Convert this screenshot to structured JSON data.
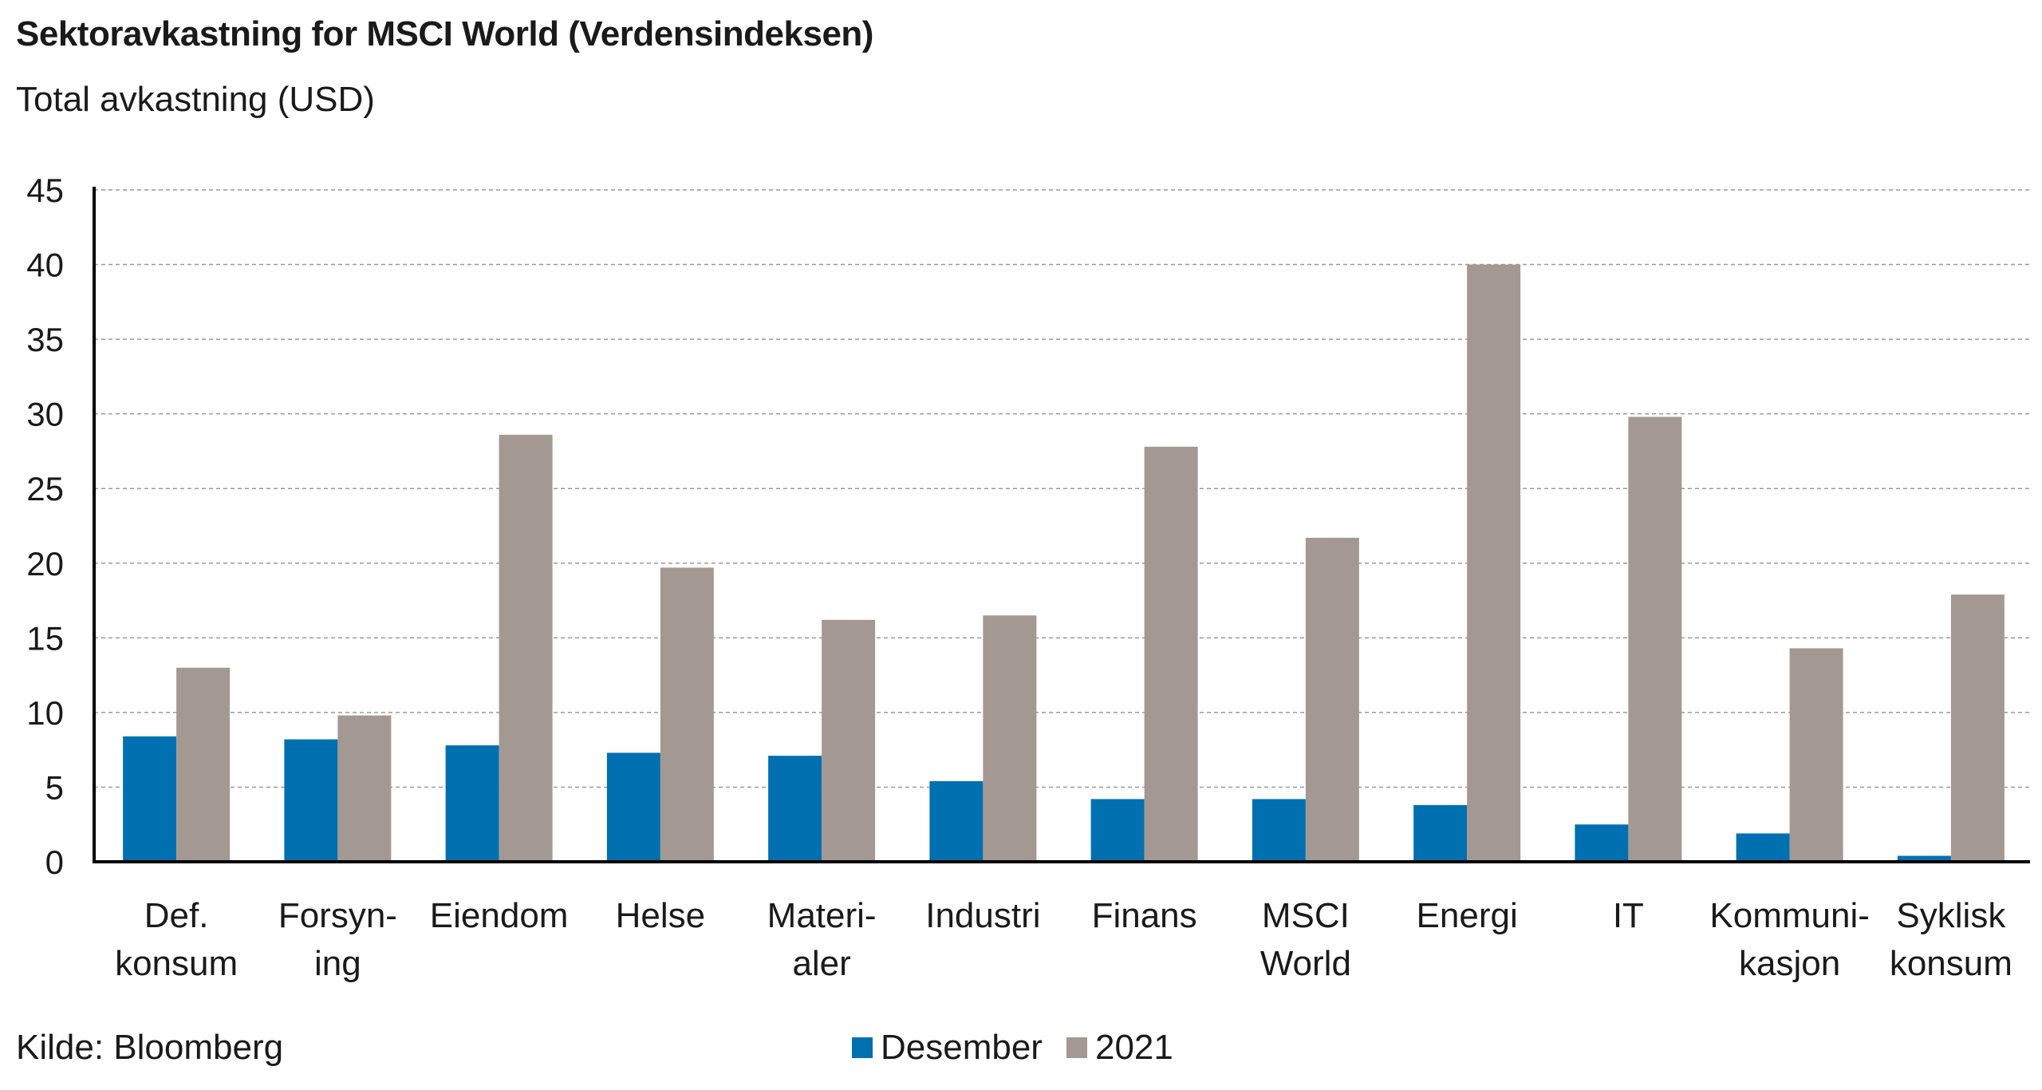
{
  "header": {
    "title": "Sektoravkastning for MSCI World (Verdensindeksen)",
    "subtitle": "Total avkastning (USD)"
  },
  "footer": {
    "source": "Kilde: Bloomberg"
  },
  "colors": {
    "desember": "#0070b0",
    "year2021": "#a39992",
    "grid": "#9a9a9a",
    "axis": "#000000"
  },
  "chart_data": {
    "type": "bar",
    "title": "Sektoravkastning for MSCI World (Verdensindeksen)",
    "subtitle": "Total avkastning (USD)",
    "categories": [
      [
        "Def.",
        "konsum"
      ],
      [
        "Forsyn-",
        "ing"
      ],
      [
        "Eiendom"
      ],
      [
        "Helse"
      ],
      [
        "Materi-",
        "aler"
      ],
      [
        "Industri"
      ],
      [
        "Finans"
      ],
      [
        "MSCI",
        "World"
      ],
      [
        "Energi"
      ],
      [
        "IT"
      ],
      [
        "Kommuni-",
        "kasjon"
      ],
      [
        "Syklisk",
        "konsum"
      ]
    ],
    "series": [
      {
        "name": "Desember",
        "values": [
          8.4,
          8.2,
          7.8,
          7.3,
          7.1,
          5.4,
          4.2,
          4.2,
          3.8,
          2.5,
          1.9,
          0.4
        ]
      },
      {
        "name": "2021",
        "values": [
          13.0,
          9.8,
          28.6,
          19.7,
          16.2,
          16.5,
          27.8,
          21.7,
          40.0,
          29.8,
          14.3,
          17.9
        ]
      }
    ],
    "ylim": [
      0,
      45
    ],
    "yticks": [
      0,
      5,
      10,
      15,
      20,
      25,
      30,
      35,
      40,
      45
    ],
    "grid": true,
    "legend": "bottom-center"
  }
}
